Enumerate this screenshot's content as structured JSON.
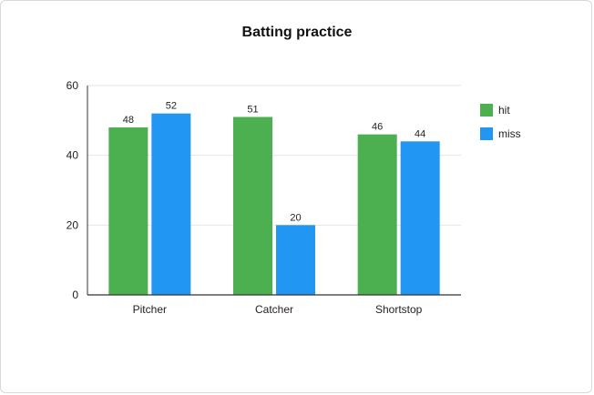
{
  "chart_data": {
    "type": "bar",
    "title": "Batting practice",
    "xlabel": "",
    "ylabel": "",
    "categories": [
      "Pitcher",
      "Catcher",
      "Shortstop"
    ],
    "series": [
      {
        "name": "hit",
        "values": [
          48,
          51,
          46
        ],
        "color": "#4caf50"
      },
      {
        "name": "miss",
        "values": [
          52,
          20,
          44
        ],
        "color": "#2196f3"
      }
    ],
    "ylim": [
      0,
      60
    ],
    "yticks": [
      0,
      20,
      40,
      60
    ],
    "grid": true,
    "legend": "right"
  }
}
